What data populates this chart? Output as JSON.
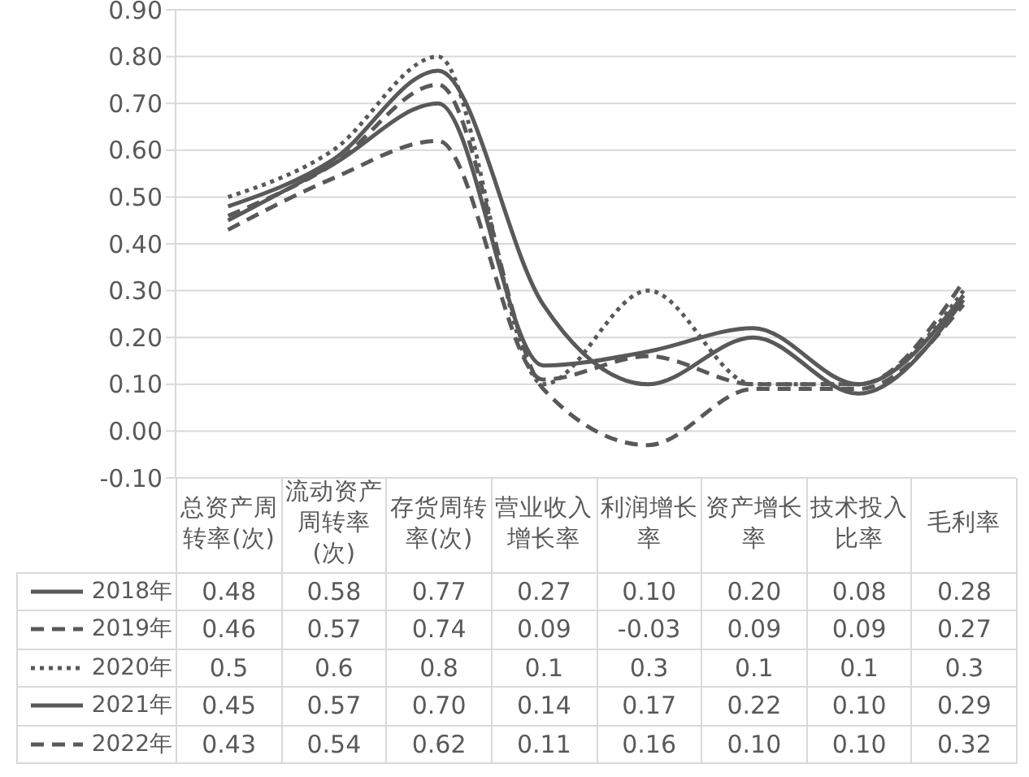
{
  "chart_data": {
    "type": "line",
    "categories": [
      "总资产周转率(次)",
      "流动资产周转率(次)",
      "存货周转率(次)",
      "营业收入增长率",
      "利润增长率",
      "资产增长率",
      "技术投入比率",
      "毛利率"
    ],
    "series": [
      {
        "name": "2018年",
        "color": "#595959",
        "line_style": "solid",
        "values": [
          0.48,
          0.58,
          0.77,
          0.27,
          0.1,
          0.2,
          0.08,
          0.28
        ],
        "value_labels": [
          "0.48",
          "0.58",
          "0.77",
          "0.27",
          "0.10",
          "0.20",
          "0.08",
          "0.28"
        ]
      },
      {
        "name": "2019年",
        "color": "#595959",
        "line_style": "dashed",
        "values": [
          0.46,
          0.57,
          0.74,
          0.09,
          -0.03,
          0.09,
          0.09,
          0.27
        ],
        "value_labels": [
          "0.46",
          "0.57",
          "0.74",
          "0.09",
          "-0.03",
          "0.09",
          "0.09",
          "0.27"
        ]
      },
      {
        "name": "2020年",
        "color": "#595959",
        "line_style": "dotted",
        "values": [
          0.5,
          0.6,
          0.8,
          0.1,
          0.3,
          0.1,
          0.1,
          0.3
        ],
        "value_labels": [
          "0.5",
          "0.6",
          "0.8",
          "0.1",
          "0.3",
          "0.1",
          "0.1",
          "0.3"
        ]
      },
      {
        "name": "2021年",
        "color": "#595959",
        "line_style": "solid",
        "values": [
          0.45,
          0.57,
          0.7,
          0.14,
          0.17,
          0.22,
          0.1,
          0.29
        ],
        "value_labels": [
          "0.45",
          "0.57",
          "0.70",
          "0.14",
          "0.17",
          "0.22",
          "0.10",
          "0.29"
        ]
      },
      {
        "name": "2022年",
        "color": "#595959",
        "line_style": "dashed",
        "values": [
          0.43,
          0.54,
          0.62,
          0.11,
          0.16,
          0.1,
          0.1,
          0.32
        ],
        "value_labels": [
          "0.43",
          "0.54",
          "0.62",
          "0.11",
          "0.16",
          "0.10",
          "0.10",
          "0.32"
        ]
      }
    ],
    "ylim": [
      -0.1,
      0.9
    ],
    "yticks": [
      {
        "value": -0.1,
        "label": "-0.10"
      },
      {
        "value": 0,
        "label": "0.00"
      },
      {
        "value": 0.1,
        "label": "0.10"
      },
      {
        "value": 0.2,
        "label": "0.20"
      },
      {
        "value": 0.3,
        "label": "0.30"
      },
      {
        "value": 0.4,
        "label": "0.40"
      },
      {
        "value": 0.5,
        "label": "0.50"
      },
      {
        "value": 0.6,
        "label": "0.60"
      },
      {
        "value": 0.7,
        "label": "0.70"
      },
      {
        "value": 0.8,
        "label": "0.80"
      },
      {
        "value": 0.9,
        "label": "0.90"
      }
    ],
    "grid": "y",
    "marker": "none",
    "legend": "bottom left"
  }
}
